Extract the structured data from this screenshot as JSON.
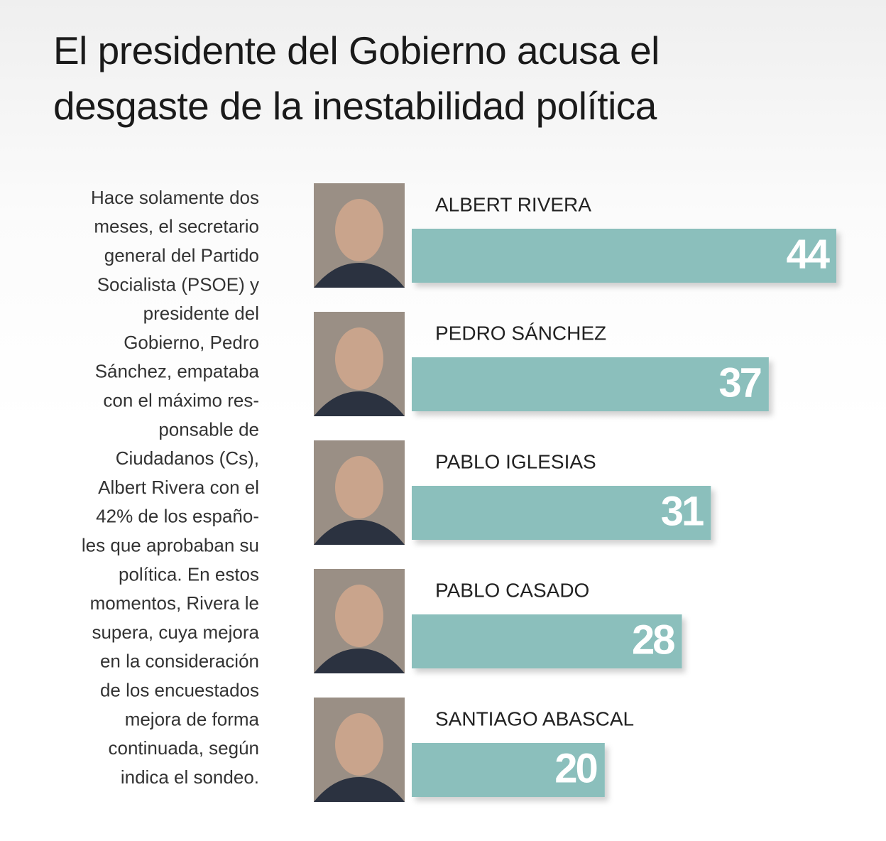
{
  "chart_data": {
    "type": "hbar",
    "title": "El presidente del Gobierno acusa el desgaste de la inestabilidad política",
    "text_lines": [
      "Hace solamente dos",
      "meses, el secretario",
      "general del Partido",
      "Socialista (PSOE) y",
      "presidente del",
      "Gobierno, Pedro",
      "Sánchez, empataba",
      "con el máximo res-",
      "ponsable de",
      "Ciudadanos (Cs),",
      "Albert Rivera con el",
      "42% de los españo-",
      "les que aprobaban su",
      "política. En estos",
      "momentos, Rivera le",
      "supera, cuya mejora",
      "en la consideración",
      "de los encuestados",
      "mejora de forma",
      "continuada, según",
      "indica el sondeo."
    ],
    "categories": [
      "ALBERT RIVERA",
      "PEDRO SÁNCHEZ",
      "PABLO IGLESIAS",
      "PABLO CASADO",
      "SANTIAGO ABASCAL"
    ],
    "values": [
      44,
      37,
      31,
      28,
      20
    ],
    "color": "#8bbfbc"
  }
}
